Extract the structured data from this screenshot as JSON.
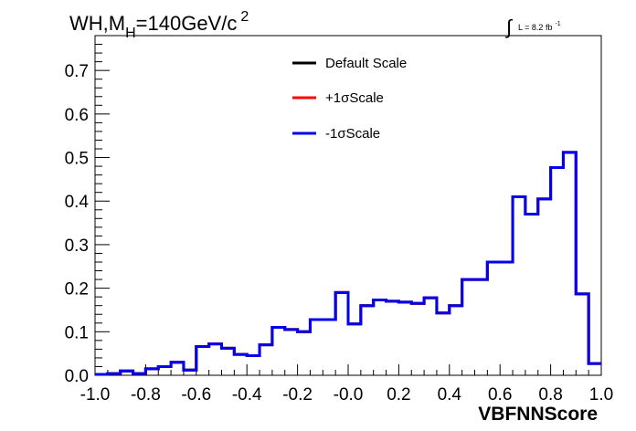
{
  "chart_data": {
    "type": "line",
    "title": {
      "main": "WH,M",
      "sub": "H",
      "rest": "=140GeV/c",
      "sup": "2"
    },
    "lumi": {
      "symbol": "∫",
      "text": "L = 8.2 fb",
      "sup": "-1"
    },
    "xlabel": "VBFNNScore",
    "ylabel": "",
    "xlim": [
      -1.0,
      1.0
    ],
    "ylim": [
      0,
      0.78
    ],
    "xticks": [
      -1.0,
      -0.8,
      -0.6,
      -0.4,
      -0.2,
      0.0,
      0.2,
      0.4,
      0.6,
      0.8,
      1.0
    ],
    "xtick_labels": [
      "-1.0",
      "-0.8",
      "-0.6",
      "-0.4",
      "-0.2",
      "-0.0",
      "0.2",
      "0.4",
      "0.6",
      "0.8",
      "1.0"
    ],
    "yticks": [
      0,
      0.1,
      0.2,
      0.3,
      0.4,
      0.5,
      0.6,
      0.7
    ],
    "ytick_labels": [
      "0.0",
      "0.1",
      "0.2",
      "0.3",
      "0.4",
      "0.5",
      "0.6",
      "0.7"
    ],
    "grid": false,
    "legend_position": "top-center",
    "bin_edges": [
      -1.0,
      -0.95,
      -0.9,
      -0.85,
      -0.8,
      -0.75,
      -0.7,
      -0.65,
      -0.6,
      -0.55,
      -0.5,
      -0.45,
      -0.4,
      -0.35,
      -0.3,
      -0.25,
      -0.2,
      -0.15,
      -0.1,
      -0.05,
      0.0,
      0.05,
      0.1,
      0.15,
      0.2,
      0.25,
      0.3,
      0.35,
      0.4,
      0.45,
      0.5,
      0.55,
      0.6,
      0.65,
      0.7,
      0.75,
      0.8,
      0.85,
      0.9,
      0.95,
      1.0
    ],
    "series": [
      {
        "name": "Default Scale",
        "color": "#000000",
        "values": [
          0.002,
          0.004,
          0.01,
          0.004,
          0.015,
          0.02,
          0.03,
          0.012,
          0.066,
          0.072,
          0.062,
          0.048,
          0.045,
          0.07,
          0.11,
          0.105,
          0.1,
          0.128,
          0.128,
          0.19,
          0.118,
          0.16,
          0.173,
          0.17,
          0.168,
          0.165,
          0.178,
          0.143,
          0.16,
          0.22,
          0.22,
          0.26,
          0.26,
          0.41,
          0.37,
          0.405,
          0.477,
          0.512,
          0.187,
          0.027
        ]
      },
      {
        "name": "+1σScale",
        "color": "#ff0000",
        "values": [
          0.002,
          0.004,
          0.01,
          0.004,
          0.015,
          0.02,
          0.03,
          0.012,
          0.066,
          0.072,
          0.062,
          0.048,
          0.045,
          0.07,
          0.11,
          0.105,
          0.1,
          0.128,
          0.128,
          0.19,
          0.118,
          0.16,
          0.173,
          0.17,
          0.168,
          0.165,
          0.178,
          0.143,
          0.16,
          0.22,
          0.22,
          0.26,
          0.26,
          0.41,
          0.37,
          0.405,
          0.477,
          0.512,
          0.187,
          0.027
        ]
      },
      {
        "name": "-1σScale",
        "color": "#0000ee",
        "values": [
          0.002,
          0.004,
          0.01,
          0.004,
          0.015,
          0.02,
          0.03,
          0.012,
          0.066,
          0.072,
          0.062,
          0.048,
          0.045,
          0.07,
          0.11,
          0.105,
          0.1,
          0.128,
          0.128,
          0.19,
          0.118,
          0.16,
          0.173,
          0.17,
          0.168,
          0.165,
          0.178,
          0.143,
          0.16,
          0.22,
          0.22,
          0.26,
          0.26,
          0.41,
          0.37,
          0.405,
          0.477,
          0.512,
          0.187,
          0.027
        ]
      }
    ]
  }
}
